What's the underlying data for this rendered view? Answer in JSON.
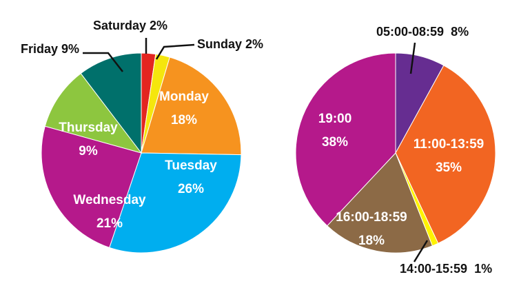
{
  "chart_data": [
    {
      "type": "pie",
      "title": "",
      "colors": [
        "#e32620",
        "#f5e60d",
        "#f6931f",
        "#00aeef",
        "#b5198b",
        "#8dc63f",
        "#00706b"
      ],
      "slices": [
        {
          "label": "Saturday",
          "value": 2,
          "text": "Saturday 2%",
          "color": "#e32620"
        },
        {
          "label": "Sunday",
          "value": 2,
          "text": "Sunday 2%",
          "color": "#f5e60d"
        },
        {
          "label": "Monday",
          "value": 18,
          "pct": "18%",
          "color": "#f6931f"
        },
        {
          "label": "Tuesday",
          "value": 26,
          "pct": "26%",
          "color": "#00aeef"
        },
        {
          "label": "Wednesday",
          "value": 21,
          "pct": "21%",
          "color": "#b5198b"
        },
        {
          "label": "Thursday",
          "value": 9,
          "pct": "9%",
          "color": "#8dc63f"
        },
        {
          "label": "Friday",
          "value": 9,
          "text": "Friday 9%",
          "color": "#00706b"
        }
      ]
    },
    {
      "type": "pie",
      "title": "",
      "colors": [
        "#662d91",
        "#f26522",
        "#fff200",
        "#8c6a46",
        "#b5198b"
      ],
      "slices": [
        {
          "label": "05:00-08:59",
          "value": 8,
          "text": "05:00-08:59  8%",
          "color": "#662d91"
        },
        {
          "label": "11:00-13:59",
          "value": 35,
          "pct": "35%",
          "color": "#f26522"
        },
        {
          "label": "14:00-15:59",
          "value": 1,
          "text": "14:00-15:59  1%",
          "color": "#fff200"
        },
        {
          "label": "16:00-18:59",
          "value": 18,
          "pct": "18%",
          "color": "#8c6a46"
        },
        {
          "label": "19:00",
          "value": 38,
          "pct": "38%",
          "color": "#b5198b"
        }
      ]
    }
  ]
}
